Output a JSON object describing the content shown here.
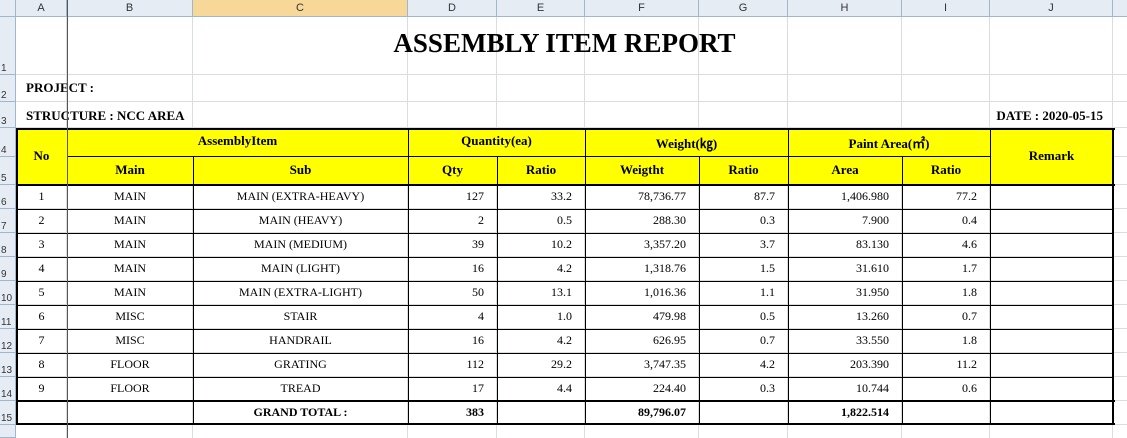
{
  "sheet": {
    "columns": [
      "A",
      "B",
      "C",
      "D",
      "E",
      "F",
      "G",
      "H",
      "I",
      "J"
    ],
    "selected_column": "C",
    "rows": [
      "1",
      "2",
      "3",
      "4",
      "5",
      "6",
      "7",
      "8",
      "9",
      "10",
      "11",
      "12",
      "13",
      "14",
      "15"
    ]
  },
  "report": {
    "title": "ASSEMBLY ITEM REPORT",
    "project_label": "PROJECT :",
    "structure_label": "STRUCTURE : NCC AREA",
    "date_label": "DATE : 2020-05-15"
  },
  "table": {
    "headers": {
      "no": "No",
      "assembly_item": "AssemblyItem",
      "main": "Main",
      "sub": "Sub",
      "quantity": "Quantity(ea)",
      "qty": "Qty",
      "qty_ratio": "Ratio",
      "weight": "Weight(㎏)",
      "weigtht": "Weigtht",
      "weight_ratio": "Ratio",
      "paint_area": "Paint Area(㎡)",
      "area": "Area",
      "area_ratio": "Ratio",
      "remark": "Remark"
    },
    "rows": [
      {
        "no": "1",
        "main": "MAIN",
        "sub": "MAIN (EXTRA-HEAVY)",
        "qty": "127",
        "qty_ratio": "33.2",
        "weight": "78,736.77",
        "weight_ratio": "87.7",
        "area": "1,406.980",
        "area_ratio": "77.2",
        "remark": ""
      },
      {
        "no": "2",
        "main": "MAIN",
        "sub": "MAIN (HEAVY)",
        "qty": "2",
        "qty_ratio": "0.5",
        "weight": "288.30",
        "weight_ratio": "0.3",
        "area": "7.900",
        "area_ratio": "0.4",
        "remark": ""
      },
      {
        "no": "3",
        "main": "MAIN",
        "sub": "MAIN (MEDIUM)",
        "qty": "39",
        "qty_ratio": "10.2",
        "weight": "3,357.20",
        "weight_ratio": "3.7",
        "area": "83.130",
        "area_ratio": "4.6",
        "remark": ""
      },
      {
        "no": "4",
        "main": "MAIN",
        "sub": "MAIN (LIGHT)",
        "qty": "16",
        "qty_ratio": "4.2",
        "weight": "1,318.76",
        "weight_ratio": "1.5",
        "area": "31.610",
        "area_ratio": "1.7",
        "remark": ""
      },
      {
        "no": "5",
        "main": "MAIN",
        "sub": "MAIN (EXTRA-LIGHT)",
        "qty": "50",
        "qty_ratio": "13.1",
        "weight": "1,016.36",
        "weight_ratio": "1.1",
        "area": "31.950",
        "area_ratio": "1.8",
        "remark": ""
      },
      {
        "no": "6",
        "main": "MISC",
        "sub": "STAIR",
        "qty": "4",
        "qty_ratio": "1.0",
        "weight": "479.98",
        "weight_ratio": "0.5",
        "area": "13.260",
        "area_ratio": "0.7",
        "remark": ""
      },
      {
        "no": "7",
        "main": "MISC",
        "sub": "HANDRAIL",
        "qty": "16",
        "qty_ratio": "4.2",
        "weight": "626.95",
        "weight_ratio": "0.7",
        "area": "33.550",
        "area_ratio": "1.8",
        "remark": ""
      },
      {
        "no": "8",
        "main": "FLOOR",
        "sub": "GRATING",
        "qty": "112",
        "qty_ratio": "29.2",
        "weight": "3,747.35",
        "weight_ratio": "4.2",
        "area": "203.390",
        "area_ratio": "11.2",
        "remark": ""
      },
      {
        "no": "9",
        "main": "FLOOR",
        "sub": "TREAD",
        "qty": "17",
        "qty_ratio": "4.4",
        "weight": "224.40",
        "weight_ratio": "0.3",
        "area": "10.744",
        "area_ratio": "0.6",
        "remark": ""
      }
    ],
    "total": {
      "label": "GRAND TOTAL :",
      "qty": "383",
      "weight": "89,796.07",
      "area": "1,822.514"
    }
  },
  "colors": {
    "header_fill": "#ffff00",
    "selected_column_fill": "#f7d899",
    "sheet_header_bg": "#e6ecf4"
  }
}
